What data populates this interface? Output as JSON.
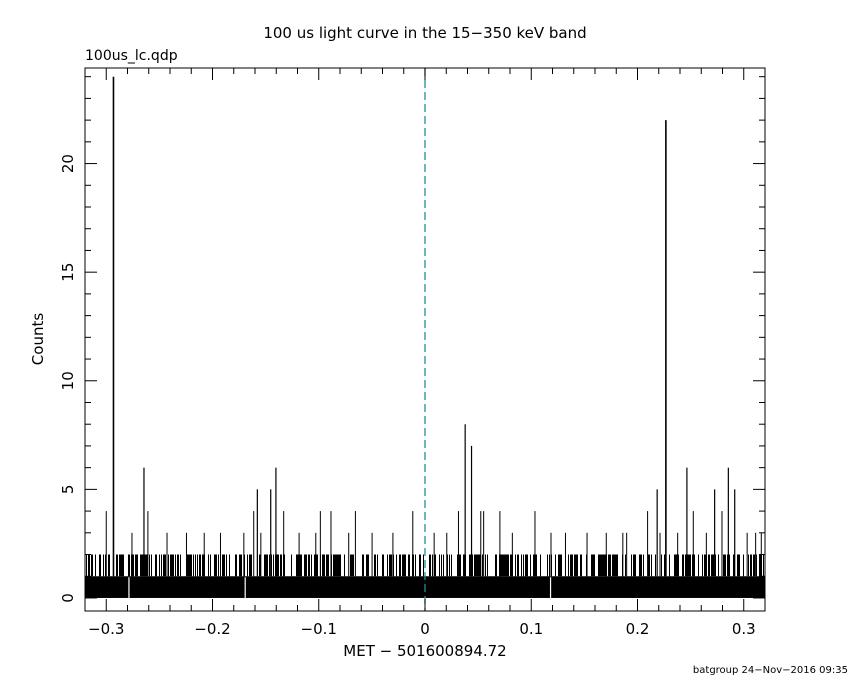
{
  "chart_data": {
    "type": "bar",
    "title": "100 us light curve in the 15−350 keV band",
    "file_label": "100us_lc.qdp",
    "xlabel": "MET − 501600894.72",
    "ylabel": "Counts",
    "footer": "batgroup 24−Nov−2016 09:35",
    "xlim": [
      -0.32,
      0.32
    ],
    "ylim": [
      -0.6,
      24.4
    ],
    "x_ticks": [
      -0.3,
      -0.2,
      -0.1,
      0,
      0.1,
      0.2,
      0.3
    ],
    "x_tick_labels": [
      "−0.3",
      "−0.2",
      "−0.1",
      "0",
      "0.1",
      "0.2",
      "0.3"
    ],
    "y_ticks": [
      0,
      5,
      10,
      15,
      20
    ],
    "y_tick_labels": [
      "0",
      "5",
      "10",
      "15",
      "20"
    ],
    "bin_width": 0.0001,
    "trigger_line_x": 0,
    "trigger_line_color": "#1e8fa0",
    "baseline_fill_counts": 1,
    "peaks": [
      {
        "x": -0.2932,
        "y": 24
      },
      {
        "x": -0.2645,
        "y": 6
      },
      {
        "x": -0.1578,
        "y": 5
      },
      {
        "x": -0.1452,
        "y": 5
      },
      {
        "x": -0.1403,
        "y": 6
      },
      {
        "x": 0.0378,
        "y": 8
      },
      {
        "x": 0.0438,
        "y": 7
      },
      {
        "x": 0.2185,
        "y": 5
      },
      {
        "x": 0.2267,
        "y": 22
      },
      {
        "x": 0.2465,
        "y": 6
      },
      {
        "x": 0.2726,
        "y": 5
      },
      {
        "x": 0.2855,
        "y": 6
      },
      {
        "x": 0.2915,
        "y": 5
      }
    ],
    "secondary_spikes": [
      {
        "x": -0.3,
        "y": 4
      },
      {
        "x": -0.2758,
        "y": 3
      },
      {
        "x": -0.2608,
        "y": 4
      },
      {
        "x": -0.2428,
        "y": 3
      },
      {
        "x": -0.2245,
        "y": 3
      },
      {
        "x": -0.2078,
        "y": 3
      },
      {
        "x": -0.1925,
        "y": 3
      },
      {
        "x": -0.1705,
        "y": 3
      },
      {
        "x": -0.1612,
        "y": 4
      },
      {
        "x": -0.1545,
        "y": 3
      },
      {
        "x": -0.133,
        "y": 4
      },
      {
        "x": -0.1185,
        "y": 3
      },
      {
        "x": -0.1028,
        "y": 3
      },
      {
        "x": -0.0985,
        "y": 4
      },
      {
        "x": -0.0885,
        "y": 4
      },
      {
        "x": -0.0718,
        "y": 3
      },
      {
        "x": -0.0655,
        "y": 4
      },
      {
        "x": -0.0498,
        "y": 3
      },
      {
        "x": -0.0302,
        "y": 3
      },
      {
        "x": -0.0115,
        "y": 4
      },
      {
        "x": 0.0086,
        "y": 3
      },
      {
        "x": 0.0205,
        "y": 3
      },
      {
        "x": 0.0315,
        "y": 4
      },
      {
        "x": 0.0525,
        "y": 4
      },
      {
        "x": 0.0552,
        "y": 4
      },
      {
        "x": 0.0705,
        "y": 4
      },
      {
        "x": 0.0822,
        "y": 3
      },
      {
        "x": 0.1035,
        "y": 4
      },
      {
        "x": 0.1186,
        "y": 3
      },
      {
        "x": 0.1322,
        "y": 3
      },
      {
        "x": 0.1525,
        "y": 3
      },
      {
        "x": 0.1706,
        "y": 3
      },
      {
        "x": 0.1862,
        "y": 3
      },
      {
        "x": 0.1898,
        "y": 3
      },
      {
        "x": 0.2095,
        "y": 4
      },
      {
        "x": 0.2212,
        "y": 3
      },
      {
        "x": 0.2378,
        "y": 3
      },
      {
        "x": 0.2525,
        "y": 4
      },
      {
        "x": 0.2648,
        "y": 3
      },
      {
        "x": 0.2795,
        "y": 4
      },
      {
        "x": 0.3032,
        "y": 3
      },
      {
        "x": 0.3112,
        "y": 3
      },
      {
        "x": 0.3165,
        "y": 3
      }
    ]
  }
}
